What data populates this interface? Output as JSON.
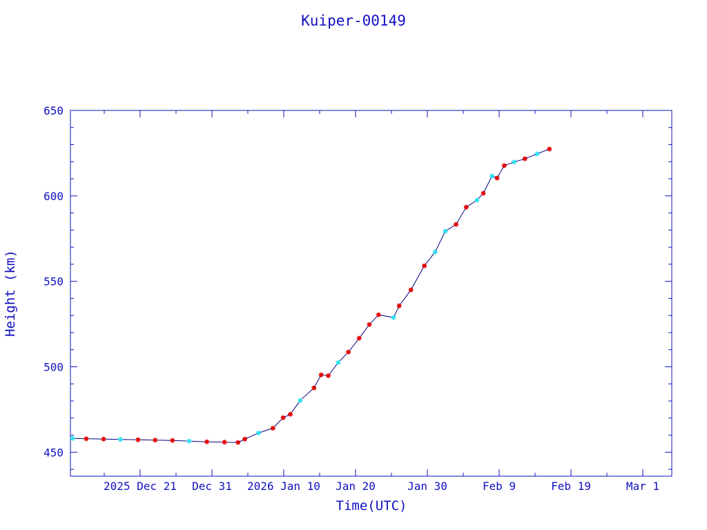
{
  "chart_data": {
    "type": "scatter",
    "title": "Kuiper-00149",
    "xlabel": "Time(UTC)",
    "ylabel": "Height (km)",
    "xlim": [
      "2025-12-11T07:00",
      "2026-03-05T01:00"
    ],
    "ylim": [
      436,
      650
    ],
    "x_ticks": [
      {
        "date": "2025-12-21",
        "label": "2025 Dec 21"
      },
      {
        "date": "2025-12-31",
        "label": "Dec 31"
      },
      {
        "date": "2026-01-10",
        "label": "2026 Jan 10"
      },
      {
        "date": "2026-01-20",
        "label": "Jan 20"
      },
      {
        "date": "2026-01-30",
        "label": "Jan 30"
      },
      {
        "date": "2026-02-09",
        "label": "Feb  9"
      },
      {
        "date": "2026-02-19",
        "label": "Feb 19"
      },
      {
        "date": "2026-03-01",
        "label": "Mar  1"
      }
    ],
    "y_ticks": [
      450,
      500,
      550,
      600,
      650
    ],
    "grid": false,
    "colors": {
      "axis": "#1010c0",
      "line": "#000080",
      "marker_a": "#e00000",
      "marker_b": "#30e0f0"
    },
    "points": [
      {
        "t": "2025-12-11T14:00",
        "h": 458.1,
        "m": "b"
      },
      {
        "t": "2025-12-13T12:00",
        "h": 457.9,
        "m": "a"
      },
      {
        "t": "2025-12-15T22:00",
        "h": 457.7,
        "m": "a"
      },
      {
        "t": "2025-12-18T06:00",
        "h": 457.5,
        "m": "b"
      },
      {
        "t": "2025-12-20T17:00",
        "h": 457.3,
        "m": "a"
      },
      {
        "t": "2025-12-23T02:00",
        "h": 457.1,
        "m": "a"
      },
      {
        "t": "2025-12-25T12:00",
        "h": 456.9,
        "m": "a"
      },
      {
        "t": "2025-12-27T20:00",
        "h": 456.5,
        "m": "b"
      },
      {
        "t": "2025-12-30T07:00",
        "h": 456.1,
        "m": "a"
      },
      {
        "t": "2026-01-01T18:00",
        "h": 455.9,
        "m": "a"
      },
      {
        "t": "2026-01-03T15:00",
        "h": 455.7,
        "m": "a"
      },
      {
        "t": "2026-01-04T14:00",
        "h": 457.7,
        "m": "a"
      },
      {
        "t": "2026-01-06T12:00",
        "h": 461.3,
        "m": "b"
      },
      {
        "t": "2026-01-08T12:00",
        "h": 464.1,
        "m": "a"
      },
      {
        "t": "2026-01-09T22:00",
        "h": 470.2,
        "m": "a"
      },
      {
        "t": "2026-01-10T22:00",
        "h": 472.2,
        "m": "a"
      },
      {
        "t": "2026-01-12T07:00",
        "h": 480.3,
        "m": "b"
      },
      {
        "t": "2026-01-14T05:00",
        "h": 487.6,
        "m": "a"
      },
      {
        "t": "2026-01-15T05:00",
        "h": 495.3,
        "m": "a"
      },
      {
        "t": "2026-01-16T05:00",
        "h": 494.8,
        "m": "a"
      },
      {
        "t": "2026-01-17T14:00",
        "h": 502.5,
        "m": "b"
      },
      {
        "t": "2026-01-19T00:00",
        "h": 508.6,
        "m": "a"
      },
      {
        "t": "2026-01-20T12:00",
        "h": 516.7,
        "m": "a"
      },
      {
        "t": "2026-01-21T22:00",
        "h": 524.7,
        "m": "a"
      },
      {
        "t": "2026-01-23T05:00",
        "h": 530.4,
        "m": "a"
      },
      {
        "t": "2026-01-25T07:00",
        "h": 528.8,
        "m": "b"
      },
      {
        "t": "2026-01-26T02:00",
        "h": 535.7,
        "m": "a"
      },
      {
        "t": "2026-01-27T17:00",
        "h": 545.0,
        "m": "a"
      },
      {
        "t": "2026-01-29T14:00",
        "h": 559.1,
        "m": "a"
      },
      {
        "t": "2026-01-31T02:00",
        "h": 567.2,
        "m": "b"
      },
      {
        "t": "2026-02-01T12:00",
        "h": 579.3,
        "m": "b"
      },
      {
        "t": "2026-02-03T00:00",
        "h": 583.3,
        "m": "a"
      },
      {
        "t": "2026-02-04T10:00",
        "h": 593.4,
        "m": "a"
      },
      {
        "t": "2026-02-05T22:00",
        "h": 597.5,
        "m": "b"
      },
      {
        "t": "2026-02-06T19:00",
        "h": 601.5,
        "m": "a"
      },
      {
        "t": "2026-02-08T00:00",
        "h": 611.6,
        "m": "b"
      },
      {
        "t": "2026-02-08T17:00",
        "h": 610.4,
        "m": "a"
      },
      {
        "t": "2026-02-09T17:00",
        "h": 617.7,
        "m": "a"
      },
      {
        "t": "2026-02-11T02:00",
        "h": 619.8,
        "m": "b"
      },
      {
        "t": "2026-02-12T14:00",
        "h": 621.7,
        "m": "a"
      },
      {
        "t": "2026-02-14T07:00",
        "h": 624.6,
        "m": "b"
      },
      {
        "t": "2026-02-16T00:00",
        "h": 627.4,
        "m": "a"
      }
    ]
  }
}
